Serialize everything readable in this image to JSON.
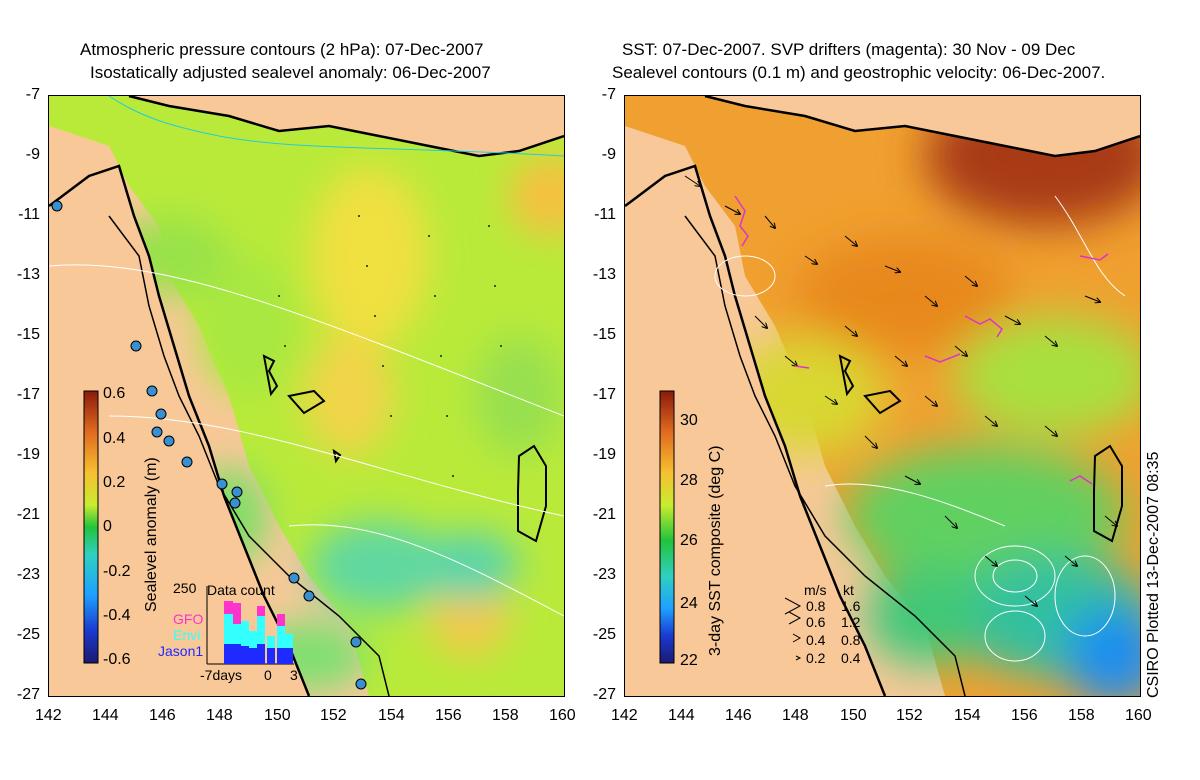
{
  "left_panel": {
    "title_line1": "Atmospheric pressure contours (2 hPa): 07-Dec-2007",
    "title_line2": "Isostatically adjusted sealevel anomaly: 06-Dec-2007",
    "colorbar": {
      "label": "Sealevel anomaly (m)",
      "ticks": [
        "0.6",
        "0.4",
        "0.2",
        "0",
        "-0.2",
        "-0.4",
        "-0.6"
      ],
      "range": [
        -0.6,
        0.6
      ]
    },
    "data_count_inset": {
      "title": "Data count",
      "ymax_label": "250",
      "missions": [
        "GFO",
        "Envi",
        "Jason1"
      ],
      "mission_colors": [
        "#ff33cc",
        "#33ffff",
        "#1f2aff"
      ],
      "x_labels": [
        "-7days",
        "0",
        "3"
      ]
    }
  },
  "right_panel": {
    "title_line1": "SST: 07-Dec-2007. SVP drifters (magenta): 30 Nov - 09 Dec",
    "title_line2": "Sealevel contours (0.1 m) and geostrophic velocity: 06-Dec-2007.",
    "colorbar": {
      "label": "3-day SST composite (deg C)",
      "ticks": [
        "30",
        "28",
        "26",
        "24",
        "22"
      ],
      "range": [
        22,
        31
      ]
    },
    "velocity_legend": {
      "headers": [
        "m/s",
        "kt"
      ],
      "rows": [
        {
          "ms": "0.8",
          "kt": "1.6"
        },
        {
          "ms": "0.6",
          "kt": "1.2"
        },
        {
          "ms": "0.4",
          "kt": "0.8"
        },
        {
          "ms": "0.2",
          "kt": "0.4"
        }
      ]
    }
  },
  "axes": {
    "x_ticks": [
      "142",
      "144",
      "146",
      "148",
      "150",
      "152",
      "154",
      "156",
      "158",
      "160"
    ],
    "y_ticks": [
      "-7",
      "-9",
      "-11",
      "-13",
      "-15",
      "-17",
      "-19",
      "-21",
      "-23",
      "-25",
      "-27"
    ],
    "lon_range": [
      142,
      160
    ],
    "lat_range": [
      -27,
      -7
    ]
  },
  "credit": "CSIRO Plotted 13-Dec-2007 08:35",
  "colors": {
    "land": "#f8c898",
    "coastline": "#000000",
    "drifter": "#dd33cc"
  }
}
